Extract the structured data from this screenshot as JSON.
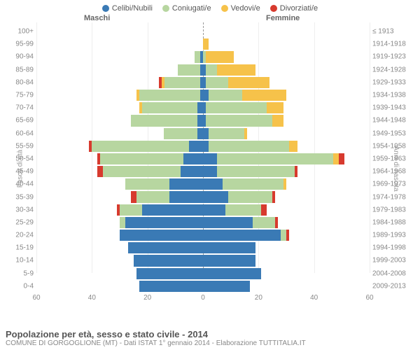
{
  "legend": [
    {
      "label": "Celibi/Nubili",
      "color": "#3a7ab5"
    },
    {
      "label": "Coniugati/e",
      "color": "#b7d6a0"
    },
    {
      "label": "Vedovi/e",
      "color": "#f6c24a"
    },
    {
      "label": "Divorziati/e",
      "color": "#d73a2e"
    }
  ],
  "headers": {
    "male": "Maschi",
    "female": "Femmine"
  },
  "axis_titles": {
    "left": "Fasce di età",
    "right": "Anni di nascita"
  },
  "x_max": 60,
  "x_ticks": [
    60,
    40,
    20,
    0,
    20,
    40,
    60
  ],
  "footer": {
    "title": "Popolazione per età, sesso e stato civile - 2014",
    "sub": "COMUNE DI GORGOGLIONE (MT) - Dati ISTAT 1° gennaio 2014 - Elaborazione TUTTITALIA.IT"
  },
  "colors": {
    "celibi": "#3a7ab5",
    "coniugati": "#b7d6a0",
    "vedovi": "#f6c24a",
    "divorziati": "#d73a2e",
    "grid": "#eeeeee",
    "center_line": "#999999"
  },
  "rows": [
    {
      "age": "100+",
      "birth": "≤ 1913",
      "m": [
        0,
        0,
        0,
        0
      ],
      "f": [
        0,
        0,
        0,
        0
      ]
    },
    {
      "age": "95-99",
      "birth": "1914-1918",
      "m": [
        0,
        0,
        0,
        0
      ],
      "f": [
        0,
        0,
        2,
        0
      ]
    },
    {
      "age": "90-94",
      "birth": "1919-1923",
      "m": [
        1,
        2,
        0,
        0
      ],
      "f": [
        0,
        1,
        10,
        0
      ]
    },
    {
      "age": "85-89",
      "birth": "1924-1928",
      "m": [
        1,
        8,
        0,
        0
      ],
      "f": [
        1,
        4,
        14,
        0
      ]
    },
    {
      "age": "80-84",
      "birth": "1929-1933",
      "m": [
        1,
        13,
        1,
        1
      ],
      "f": [
        1,
        8,
        15,
        0
      ]
    },
    {
      "age": "75-79",
      "birth": "1934-1938",
      "m": [
        1,
        22,
        1,
        0
      ],
      "f": [
        2,
        12,
        16,
        0
      ]
    },
    {
      "age": "70-74",
      "birth": "1939-1943",
      "m": [
        2,
        20,
        1,
        0
      ],
      "f": [
        1,
        22,
        6,
        0
      ]
    },
    {
      "age": "65-69",
      "birth": "1944-1948",
      "m": [
        2,
        24,
        0,
        0
      ],
      "f": [
        1,
        24,
        4,
        0
      ]
    },
    {
      "age": "60-64",
      "birth": "1949-1953",
      "m": [
        2,
        12,
        0,
        0
      ],
      "f": [
        2,
        13,
        1,
        0
      ]
    },
    {
      "age": "55-59",
      "birth": "1954-1958",
      "m": [
        5,
        35,
        0,
        1
      ],
      "f": [
        2,
        29,
        3,
        0
      ]
    },
    {
      "age": "50-54",
      "birth": "1959-1963",
      "m": [
        7,
        30,
        0,
        1
      ],
      "f": [
        5,
        42,
        2,
        2
      ]
    },
    {
      "age": "45-49",
      "birth": "1964-1968",
      "m": [
        8,
        28,
        0,
        2
      ],
      "f": [
        5,
        28,
        0,
        1
      ]
    },
    {
      "age": "40-44",
      "birth": "1969-1973",
      "m": [
        12,
        16,
        0,
        0
      ],
      "f": [
        7,
        22,
        1,
        0
      ]
    },
    {
      "age": "35-39",
      "birth": "1974-1978",
      "m": [
        12,
        12,
        0,
        2
      ],
      "f": [
        9,
        16,
        0,
        1
      ]
    },
    {
      "age": "30-34",
      "birth": "1979-1983",
      "m": [
        22,
        8,
        0,
        1
      ],
      "f": [
        8,
        13,
        0,
        2
      ]
    },
    {
      "age": "25-29",
      "birth": "1984-1988",
      "m": [
        28,
        2,
        0,
        0
      ],
      "f": [
        18,
        8,
        0,
        1
      ]
    },
    {
      "age": "20-24",
      "birth": "1989-1993",
      "m": [
        30,
        0,
        0,
        0
      ],
      "f": [
        28,
        2,
        0,
        1
      ]
    },
    {
      "age": "15-19",
      "birth": "1994-1998",
      "m": [
        27,
        0,
        0,
        0
      ],
      "f": [
        19,
        0,
        0,
        0
      ]
    },
    {
      "age": "10-14",
      "birth": "1999-2003",
      "m": [
        25,
        0,
        0,
        0
      ],
      "f": [
        19,
        0,
        0,
        0
      ]
    },
    {
      "age": "5-9",
      "birth": "2004-2008",
      "m": [
        24,
        0,
        0,
        0
      ],
      "f": [
        21,
        0,
        0,
        0
      ]
    },
    {
      "age": "0-4",
      "birth": "2009-2013",
      "m": [
        23,
        0,
        0,
        0
      ],
      "f": [
        17,
        0,
        0,
        0
      ]
    }
  ]
}
